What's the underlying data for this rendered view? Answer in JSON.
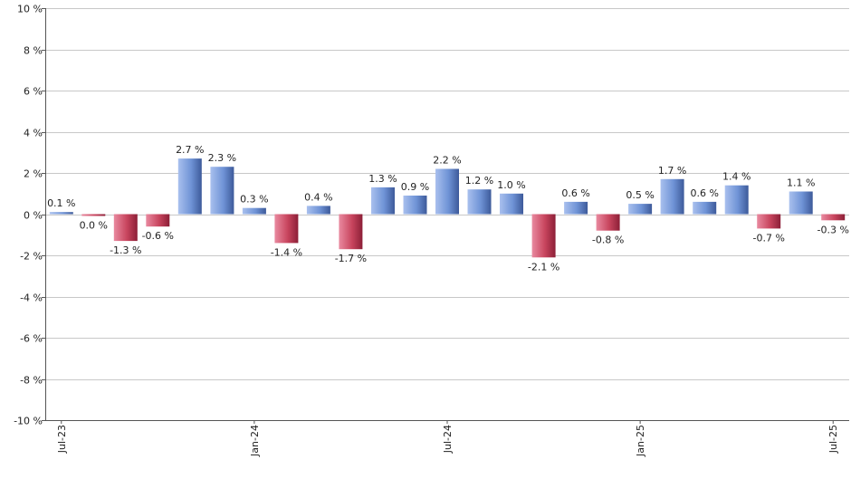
{
  "colors": {
    "positive": "#6f93d6",
    "negative": "#c8455e",
    "grid": "#c8c8c8",
    "axis": "#555555"
  },
  "chart_data": {
    "type": "bar",
    "ylim": [
      -10,
      10
    ],
    "y_ticks": [
      10,
      8,
      6,
      4,
      2,
      0,
      -2,
      -4,
      -6,
      -8,
      -10
    ],
    "y_tick_labels": [
      "10 %",
      "8 %",
      "6 %",
      "4 %",
      "2 %",
      "0 %",
      "-2 %",
      "-4 %",
      "-6 %",
      "-8 %",
      "-10 %"
    ],
    "grid": true,
    "x_tick_labels": [
      {
        "index": 0,
        "label": "Jul-23"
      },
      {
        "index": 6,
        "label": "Jan-24"
      },
      {
        "index": 12,
        "label": "Jul-24"
      },
      {
        "index": 18,
        "label": "Jan-25"
      },
      {
        "index": 24,
        "label": "Jul-25"
      }
    ],
    "values": [
      0.1,
      0.0,
      -1.3,
      -0.6,
      2.7,
      2.3,
      0.3,
      -1.4,
      0.4,
      -1.7,
      1.3,
      0.9,
      2.2,
      1.2,
      1.0,
      -2.1,
      0.6,
      -0.8,
      0.5,
      1.7,
      0.6,
      1.4,
      -0.7,
      1.1,
      -0.3
    ],
    "negative_flags": [
      false,
      true,
      true,
      true,
      false,
      false,
      false,
      true,
      false,
      true,
      false,
      false,
      false,
      false,
      false,
      true,
      false,
      true,
      false,
      false,
      false,
      false,
      true,
      false,
      true
    ],
    "data_labels": [
      "0.1 %",
      "0.0 %",
      "-1.3 %",
      "-0.6 %",
      "2.7 %",
      "2.3 %",
      "0.3 %",
      "-1.4 %",
      "0.4 %",
      "-1.7 %",
      "1.3 %",
      "0.9 %",
      "2.2 %",
      "1.2 %",
      "1.0 %",
      "-2.1 %",
      "0.6 %",
      "-0.8 %",
      "0.5 %",
      "1.7 %",
      "0.6 %",
      "1.4 %",
      "-0.7 %",
      "1.1 %",
      "-0.3 %"
    ]
  }
}
